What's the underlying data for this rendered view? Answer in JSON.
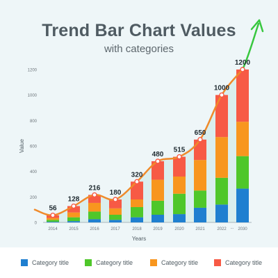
{
  "header": {
    "title": "Trend Bar Chart Values",
    "subtitle": "with categories"
  },
  "chart_data": {
    "type": "bar",
    "stacked": true,
    "title": "Trend Bar Chart Values",
    "subtitle": "with categories",
    "xlabel": "Years",
    "ylabel": "Value",
    "ylim": [
      0,
      1200
    ],
    "yticks": [
      0,
      200,
      400,
      600,
      800,
      1000,
      1200
    ],
    "grid": false,
    "legend_position": "bottom",
    "axis_break_label": "...",
    "categories": [
      "2014",
      "2015",
      "2016",
      "2017",
      "2018",
      "2019",
      "2020",
      "2021",
      "2022",
      "2030"
    ],
    "totals": [
      56,
      128,
      216,
      180,
      320,
      480,
      515,
      650,
      1000,
      1200
    ],
    "series": [
      {
        "name": "Category title",
        "color": "#1f7fd0",
        "values": [
          5,
          10,
          25,
          20,
          40,
          60,
          65,
          115,
          140,
          265
        ]
      },
      {
        "name": "Category title",
        "color": "#4fc72a",
        "values": [
          15,
          30,
          60,
          40,
          80,
          110,
          160,
          135,
          210,
          255
        ]
      },
      {
        "name": "Category title",
        "color": "#f8961e",
        "values": [
          15,
          38,
          68,
          50,
          60,
          165,
          135,
          240,
          320,
          270
        ]
      },
      {
        "name": "Category title",
        "color": "#f75a45",
        "values": [
          21,
          50,
          63,
          70,
          140,
          145,
          155,
          160,
          330,
          410
        ]
      }
    ],
    "trend_color": "#f08a2a",
    "trend_arrow_color": "#38c73f"
  }
}
